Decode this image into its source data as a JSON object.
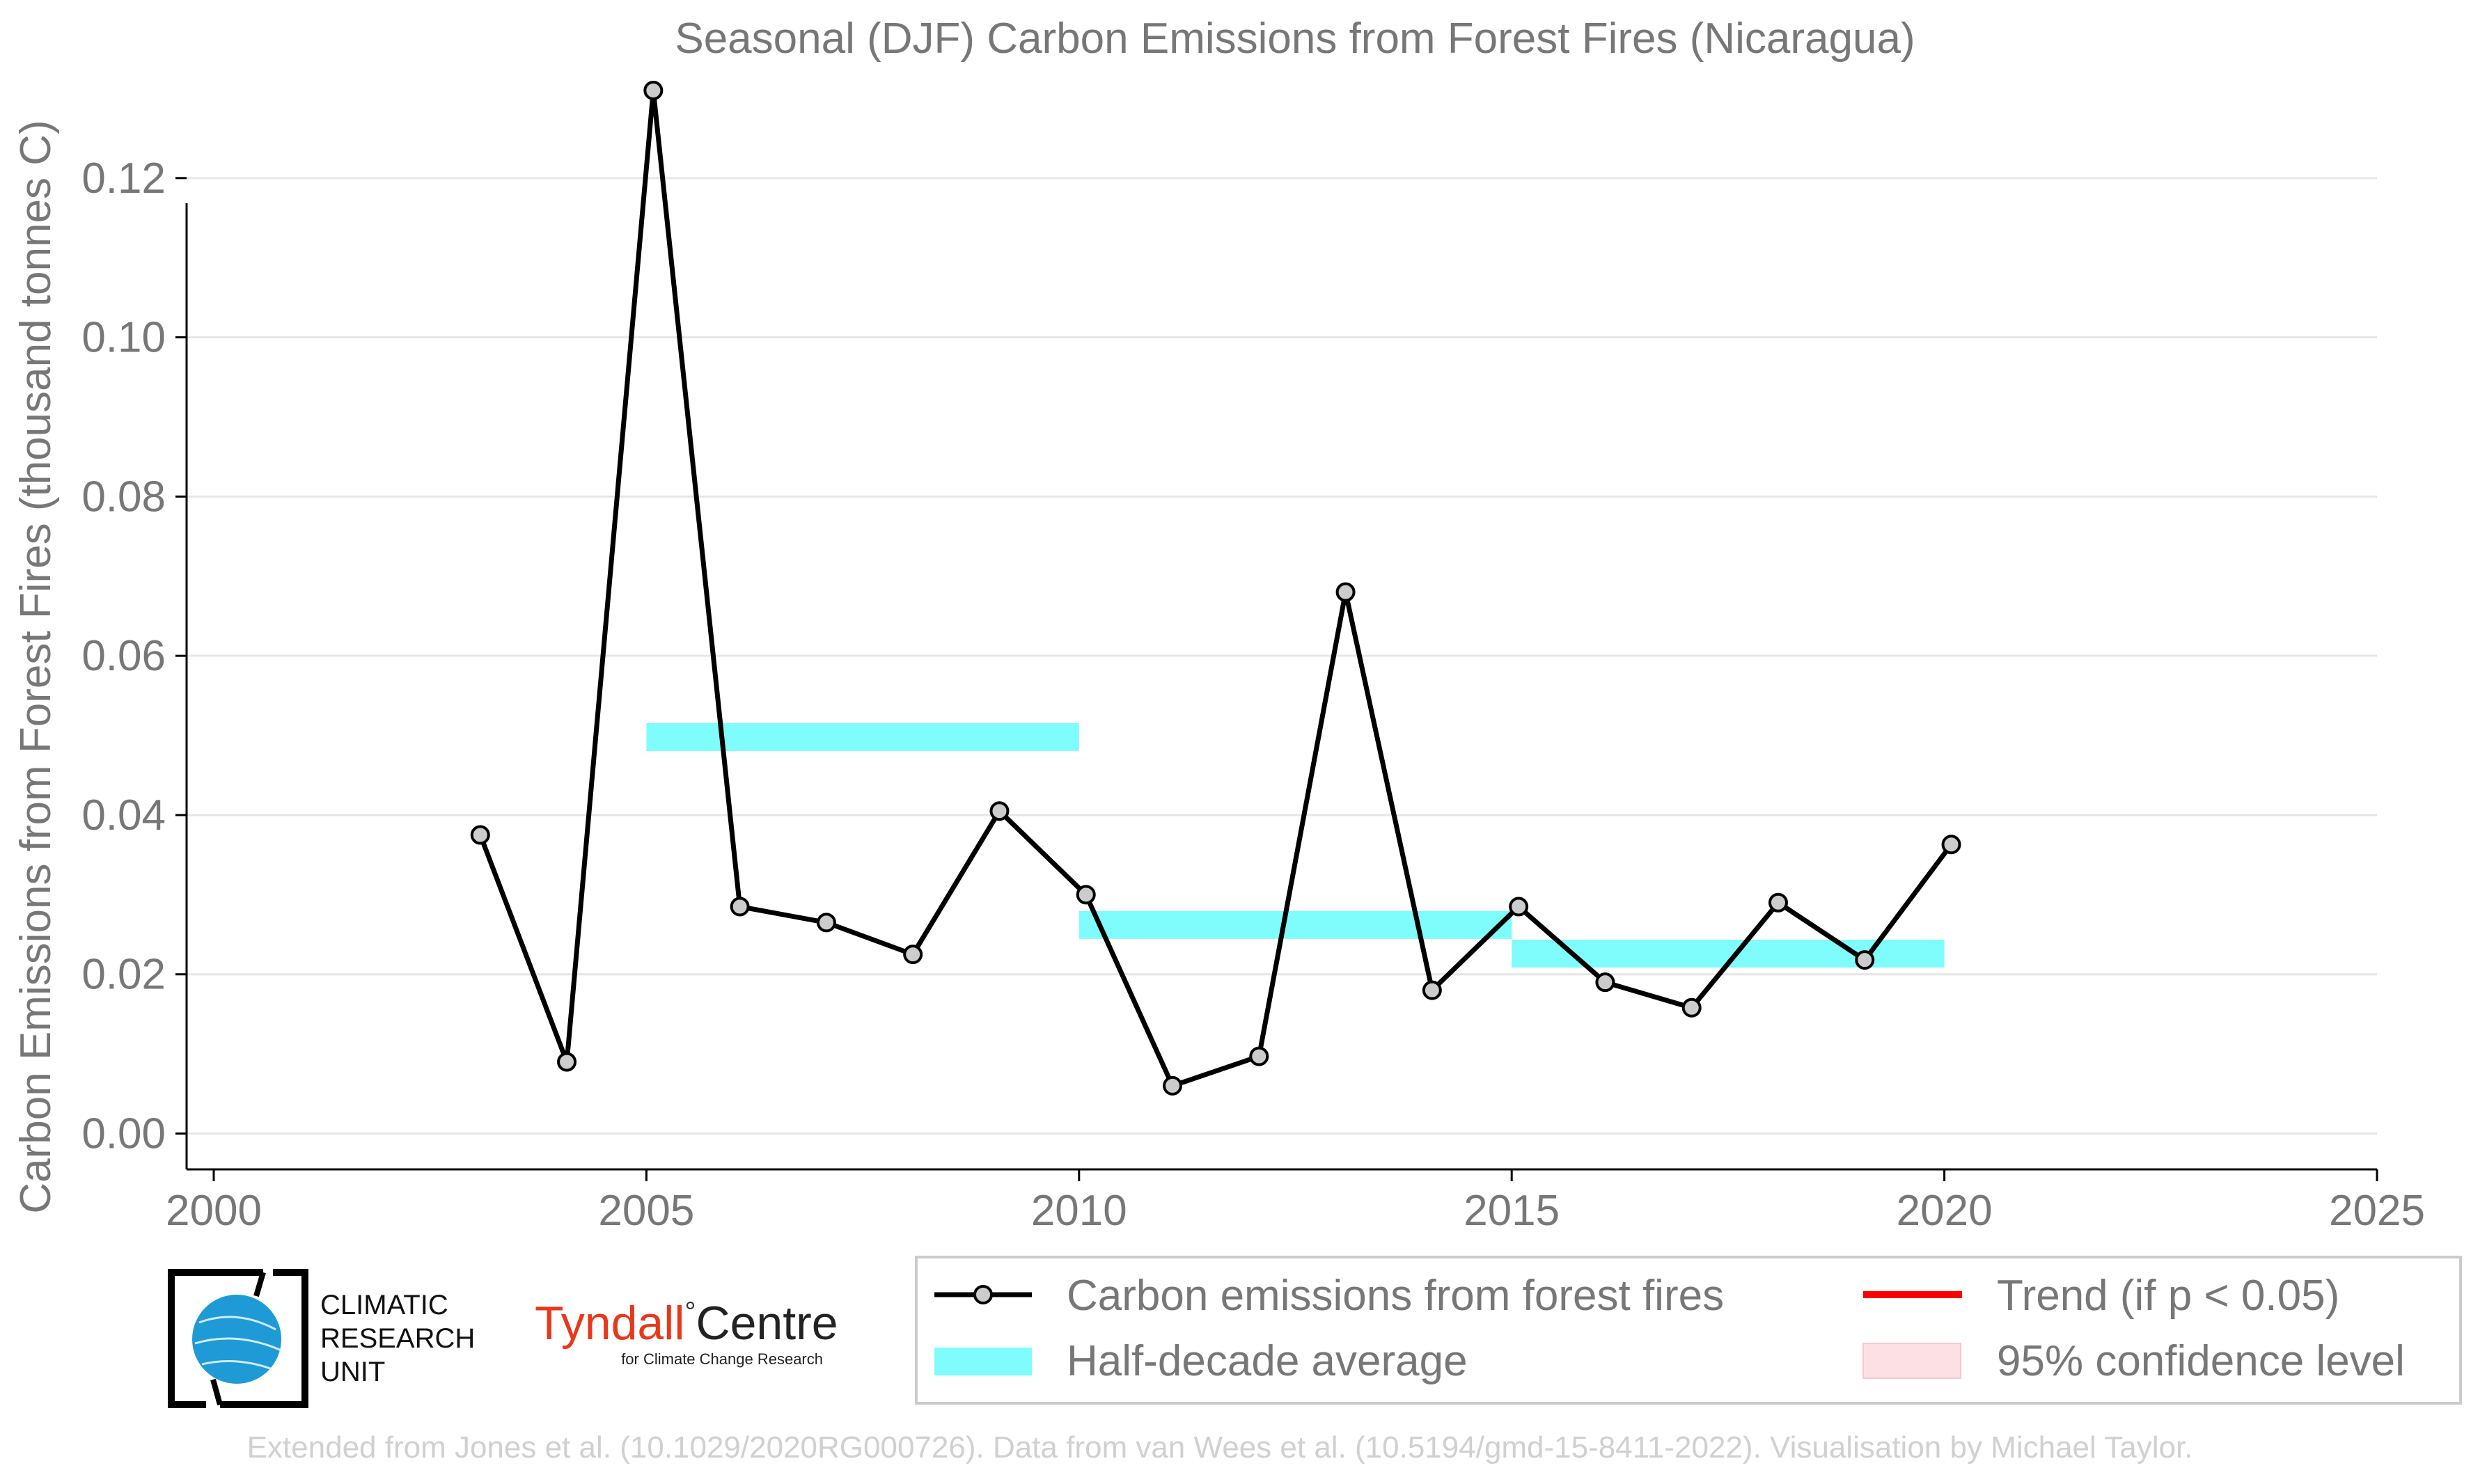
{
  "chart_data": {
    "type": "line",
    "title": "Seasonal (DJF) Carbon Emissions from Forest Fires (Nicaragua)",
    "xlabel": "",
    "ylabel": "Carbon Emissions from Forest Fires (thousand tonnes C)",
    "xlim": [
      2000,
      2025
    ],
    "ylim": [
      -0.0045,
      0.131
    ],
    "x_ticks": [
      2000,
      2005,
      2010,
      2015,
      2020,
      2025
    ],
    "y_ticks": [
      0.0,
      0.02,
      0.04,
      0.06,
      0.08,
      0.1,
      0.12
    ],
    "y_tick_labels": [
      "0.00",
      "0.02",
      "0.04",
      "0.06",
      "0.08",
      "0.10",
      "0.12"
    ],
    "grid": "horizontal",
    "series": [
      {
        "name": "Carbon emissions from forest fires",
        "color": "#000000",
        "marker_fill": "#cccccc",
        "x": [
          2003.08,
          2004.08,
          2005.08,
          2006.08,
          2007.08,
          2008.08,
          2009.08,
          2010.08,
          2011.08,
          2012.08,
          2013.08,
          2014.08,
          2015.08,
          2016.08,
          2017.08,
          2018.08,
          2019.08,
          2020.08
        ],
        "values": [
          0.0375,
          0.009,
          0.131,
          0.0285,
          0.0265,
          0.0225,
          0.0405,
          0.03,
          0.006,
          0.0097,
          0.068,
          0.018,
          0.0285,
          0.019,
          0.0158,
          0.029,
          0.0218,
          0.0363
        ]
      },
      {
        "name": "Half-decade average",
        "color": "#7ffcfc",
        "segments": [
          {
            "x0": 2005,
            "x1": 2010,
            "value": 0.0498
          },
          {
            "x0": 2010,
            "x1": 2015,
            "value": 0.0262
          },
          {
            "x0": 2015,
            "x1": 2020,
            "value": 0.0226
          }
        ]
      }
    ],
    "legend": {
      "placement": "bottom-right",
      "entries": [
        {
          "label": "Carbon emissions from forest fires",
          "kind": "line-marker",
          "color": "#000000"
        },
        {
          "label": "Trend (if p < 0.05)",
          "kind": "line",
          "color": "#ff0000"
        },
        {
          "label": "Half-decade average",
          "kind": "band",
          "color": "#7ffcfc"
        },
        {
          "label": "95% confidence level",
          "kind": "patch",
          "color": "#fde0e3"
        }
      ]
    }
  },
  "logos": {
    "cru_text": [
      "CLIMATIC",
      "RESEARCH",
      "UNIT"
    ],
    "tyndall_main_a": "Tyndall",
    "tyndall_degree": "°",
    "tyndall_main_b": "Centre",
    "tyndall_sub": "for Climate Change Research",
    "tyndall_color": "#e8381c",
    "cru_globe_color": "#1e9ad6"
  },
  "credit": "Extended from Jones et al. (10.1029/2020RG000726). Data from van Wees et al. (10.5194/gmd-15-8411-2022). Visualisation by Michael Taylor."
}
